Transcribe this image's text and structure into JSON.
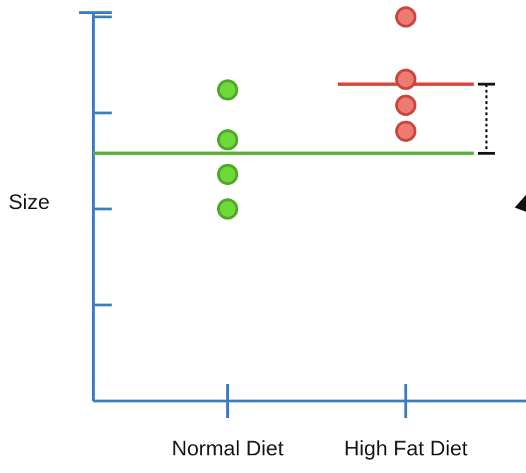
{
  "chart_data": {
    "type": "scatter",
    "ylabel": "Size",
    "categories": [
      "Normal Diet",
      "High Fat Diet"
    ],
    "y_ticks": [
      1,
      2,
      3,
      4,
      5
    ],
    "ylim": [
      0,
      5.1
    ],
    "series": [
      {
        "category": "Normal Diet",
        "color": "#6fd93a",
        "stroke": "#4fa82a",
        "values": [
          2.0,
          2.36,
          2.72,
          3.24
        ]
      },
      {
        "category": "High Fat Diet",
        "color": "#ee7b73",
        "stroke": "#c9473d",
        "values": [
          2.81,
          3.08,
          3.35,
          4.0
        ]
      }
    ],
    "mean_lines": [
      {
        "name": "overall-mean",
        "value": 2.58,
        "color": "#5bb03a",
        "from_category": "start",
        "to_category": "High Fat Diet"
      },
      {
        "name": "high-fat-mean",
        "value": 3.3,
        "color": "#d9473a",
        "from_category": "High Fat Diet",
        "to_category": "High Fat Diet"
      }
    ],
    "distance_marker": {
      "from": 2.58,
      "to": 3.3,
      "color": "#111111"
    },
    "axis_color": "#3d7fc0"
  }
}
